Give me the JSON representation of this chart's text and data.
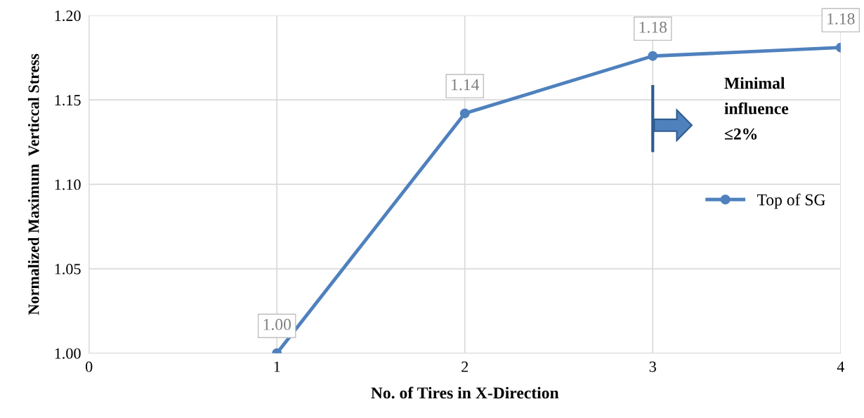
{
  "chart_data": {
    "type": "line",
    "xlabel": "No. of Tires in X-Direction",
    "ylabel": "Normalized Maximum  Verticcal Stress",
    "x": [
      1,
      2,
      3,
      4
    ],
    "series": [
      {
        "name": "Top of SG",
        "color": "#4f81bd",
        "values": [
          1.0,
          1.142,
          1.176,
          1.181
        ],
        "value_labels": [
          "1.00",
          "1.14",
          "1.18",
          "1.18"
        ]
      }
    ],
    "xlim": [
      0,
      4
    ],
    "xticks": [
      0,
      1,
      2,
      3,
      4
    ],
    "ylim": [
      1.0,
      1.2
    ],
    "yticks": [
      {
        "value": 1.0,
        "label": "1.00"
      },
      {
        "value": 1.05,
        "label": "1.05"
      },
      {
        "value": 1.1,
        "label": "1.10"
      },
      {
        "value": 1.15,
        "label": "1.15"
      },
      {
        "value": 1.2,
        "label": "1.20"
      }
    ],
    "grid": true,
    "legend": "right",
    "marker": "circle",
    "line_style": "solid",
    "annotations": [
      "Minimal\ninfluence\n≤2%"
    ]
  }
}
